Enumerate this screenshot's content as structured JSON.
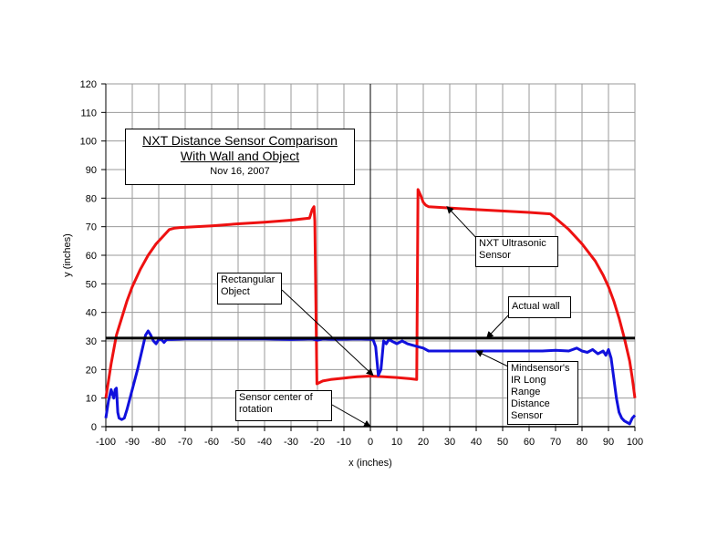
{
  "chart_data": {
    "type": "line",
    "title": "NXT Distance Sensor Comparison",
    "subtitle": "With Wall and Object",
    "date": "Nov 16, 2007",
    "xlabel": "x (inches)",
    "ylabel": "y (inches)",
    "xlim": [
      -100,
      100
    ],
    "ylim": [
      0,
      120
    ],
    "xticks": [
      "-100",
      "-90",
      "-80",
      "-70",
      "-60",
      "-50",
      "-40",
      "-30",
      "-20",
      "-10",
      "0",
      "10",
      "20",
      "30",
      "40",
      "50",
      "60",
      "70",
      "80",
      "90",
      "100"
    ],
    "yticks": [
      "0",
      "10",
      "20",
      "30",
      "40",
      "50",
      "60",
      "70",
      "80",
      "90",
      "100",
      "110",
      "120"
    ],
    "grid": true,
    "series": [
      {
        "name": "NXT Ultrasonic Sensor",
        "color": "#ee1111",
        "points": [
          [
            -100,
            10
          ],
          [
            -98,
            22
          ],
          [
            -96,
            32
          ],
          [
            -94,
            38
          ],
          [
            -92,
            44
          ],
          [
            -90,
            49
          ],
          [
            -87,
            55
          ],
          [
            -84,
            60
          ],
          [
            -81,
            64
          ],
          [
            -78,
            67
          ],
          [
            -76,
            69
          ],
          [
            -74,
            69.5
          ],
          [
            -72,
            69.7
          ],
          [
            -60,
            70.3
          ],
          [
            -50,
            71
          ],
          [
            -40,
            71.6
          ],
          [
            -30,
            72.3
          ],
          [
            -23,
            73
          ],
          [
            -22,
            76
          ],
          [
            -21.3,
            77
          ],
          [
            -21,
            72
          ],
          [
            -20.2,
            15
          ],
          [
            -18,
            16
          ],
          [
            -15,
            16.5
          ],
          [
            -10,
            17
          ],
          [
            -5,
            17.5
          ],
          [
            0,
            17.7
          ],
          [
            5,
            17.5
          ],
          [
            10,
            17.2
          ],
          [
            15,
            16.8
          ],
          [
            17.5,
            16.5
          ],
          [
            18,
            83
          ],
          [
            19,
            81
          ],
          [
            20,
            78.5
          ],
          [
            21,
            77.5
          ],
          [
            22,
            77
          ],
          [
            40,
            76
          ],
          [
            60,
            75
          ],
          [
            68,
            74.5
          ],
          [
            70,
            73
          ],
          [
            75,
            69
          ],
          [
            80,
            64
          ],
          [
            85,
            58
          ],
          [
            88,
            53
          ],
          [
            90,
            49
          ],
          [
            92,
            44
          ],
          [
            94,
            38
          ],
          [
            96,
            31
          ],
          [
            97,
            27
          ],
          [
            98,
            23
          ],
          [
            99,
            17
          ],
          [
            100,
            10
          ]
        ]
      },
      {
        "name": "Mindsensor's IR Long Range Distance Sensor",
        "color": "#1111dd",
        "points": [
          [
            -100,
            3
          ],
          [
            -99,
            9
          ],
          [
            -98,
            13
          ],
          [
            -97,
            10
          ],
          [
            -96.5,
            13
          ],
          [
            -96,
            13.5
          ],
          [
            -95.5,
            5
          ],
          [
            -95,
            3
          ],
          [
            -94,
            2.5
          ],
          [
            -93,
            3
          ],
          [
            -92,
            6
          ],
          [
            -90,
            13
          ],
          [
            -88,
            20
          ],
          [
            -86,
            28
          ],
          [
            -85,
            32
          ],
          [
            -84,
            33.5
          ],
          [
            -83,
            32
          ],
          [
            -82,
            30
          ],
          [
            -81,
            29
          ],
          [
            -80,
            30.5
          ],
          [
            -79,
            30.5
          ],
          [
            -78,
            29.5
          ],
          [
            -77,
            30.5
          ],
          [
            -75,
            30.5
          ],
          [
            -70,
            30.7
          ],
          [
            -60,
            30.7
          ],
          [
            -50,
            30.7
          ],
          [
            -40,
            30.7
          ],
          [
            -30,
            30.5
          ],
          [
            -22,
            30.7
          ],
          [
            -20,
            30.3
          ],
          [
            -18,
            30.7
          ],
          [
            -15,
            30.6
          ],
          [
            -10,
            30.6
          ],
          [
            -5,
            30.7
          ],
          [
            0,
            30.6
          ],
          [
            1,
            30.5
          ],
          [
            2,
            28
          ],
          [
            3,
            18
          ],
          [
            4,
            20
          ],
          [
            5,
            30
          ],
          [
            6,
            29
          ],
          [
            7,
            30.5
          ],
          [
            8,
            30
          ],
          [
            10,
            29
          ],
          [
            12,
            30
          ],
          [
            14,
            29
          ],
          [
            16,
            28.5
          ],
          [
            18,
            28
          ],
          [
            20,
            27.5
          ],
          [
            22,
            26.5
          ],
          [
            30,
            26.5
          ],
          [
            40,
            26.5
          ],
          [
            50,
            26.5
          ],
          [
            60,
            26.5
          ],
          [
            65,
            26.5
          ],
          [
            70,
            26.7
          ],
          [
            75,
            26.5
          ],
          [
            78,
            27.5
          ],
          [
            80,
            26.5
          ],
          [
            82,
            26
          ],
          [
            84,
            27
          ],
          [
            86,
            25.5
          ],
          [
            88,
            26.5
          ],
          [
            89,
            25
          ],
          [
            90,
            27
          ],
          [
            91,
            24
          ],
          [
            92,
            17
          ],
          [
            93,
            10
          ],
          [
            94,
            5
          ],
          [
            95,
            3
          ],
          [
            96,
            2
          ],
          [
            97,
            1.5
          ],
          [
            98,
            1
          ],
          [
            99,
            3
          ],
          [
            100,
            4
          ]
        ]
      },
      {
        "name": "Actual wall",
        "color": "#000000",
        "points": [
          [
            -100,
            31
          ],
          [
            100,
            31
          ]
        ]
      }
    ],
    "annotations": [
      {
        "id": "ultrasonic",
        "text": "NXT Ultrasonic\nSensor",
        "target": [
          29,
          77
        ]
      },
      {
        "id": "wall",
        "text": "Actual wall",
        "target": [
          44,
          31
        ]
      },
      {
        "id": "rect",
        "text": "Rectangular\nObject",
        "target": [
          1,
          18
        ]
      },
      {
        "id": "ir",
        "text": "Mindsensor's\nIR Long\nRange\nDistance\nSensor",
        "target": [
          40,
          26.5
        ]
      },
      {
        "id": "center",
        "text": "Sensor center of\nrotation",
        "target": [
          0,
          0
        ]
      }
    ]
  }
}
